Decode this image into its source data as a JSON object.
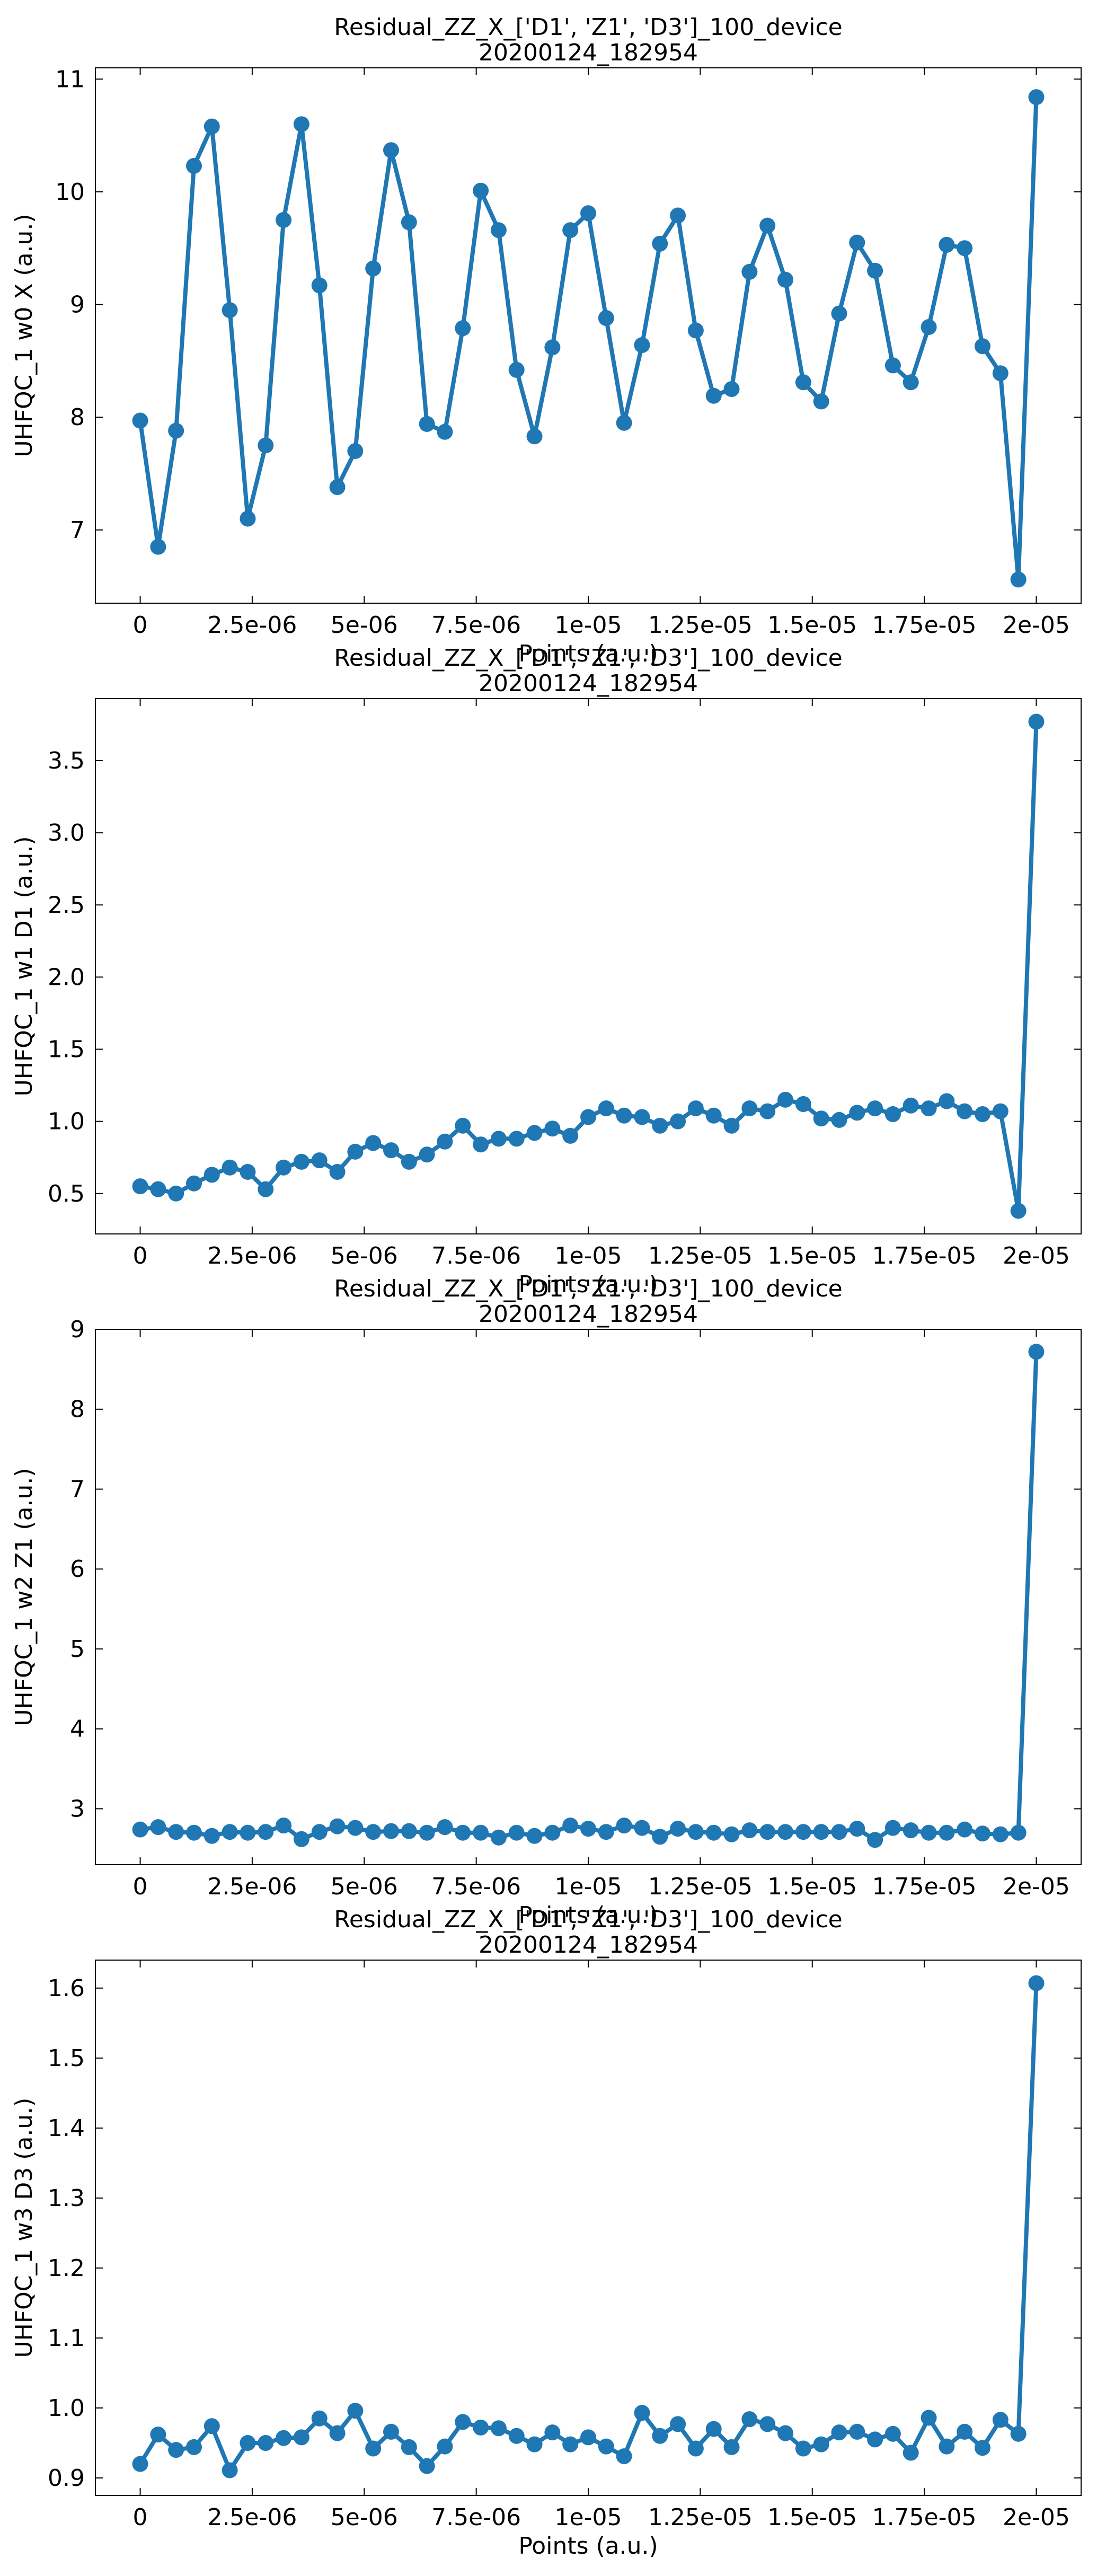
{
  "chart_data": [
    {
      "type": "line",
      "title": "Residual_ZZ_X_['D1', 'Z1', 'D3']_100_device",
      "subtitle": "20200124_182954",
      "xlabel": "Points (a.u.)",
      "ylabel": "UHFQC_1 w0 X (a.u.)",
      "xlim": [
        -1e-06,
        2.1e-05
      ],
      "ylim": [
        6.35,
        11.1
      ],
      "xticks": [
        0,
        2.5e-06,
        5e-06,
        7.5e-06,
        1e-05,
        1.25e-05,
        1.5e-05,
        1.75e-05,
        2e-05
      ],
      "xtick_labels": [
        "0",
        "2.5e-06",
        "5e-06",
        "7.5e-06",
        "1e-05",
        "1.25e-05",
        "1.5e-05",
        "1.75e-05",
        "2e-05"
      ],
      "yticks": [
        7,
        8,
        9,
        10,
        11
      ],
      "ytick_labels": [
        "7",
        "8",
        "9",
        "10",
        "11"
      ],
      "color": "#1f77b4",
      "x": [
        0,
        4e-07,
        8e-07,
        1.2e-06,
        1.6e-06,
        2e-06,
        2.4e-06,
        2.8e-06,
        3.2e-06,
        3.6e-06,
        4e-06,
        4.4e-06,
        4.8e-06,
        5.2e-06,
        5.6e-06,
        6e-06,
        6.4e-06,
        6.8e-06,
        7.2e-06,
        7.6e-06,
        8e-06,
        8.4e-06,
        8.8e-06,
        9.2e-06,
        9.6e-06,
        1e-05,
        1.04e-05,
        1.08e-05,
        1.12e-05,
        1.16e-05,
        1.2e-05,
        1.24e-05,
        1.28e-05,
        1.32e-05,
        1.36e-05,
        1.4e-05,
        1.44e-05,
        1.48e-05,
        1.52e-05,
        1.56e-05,
        1.6e-05,
        1.64e-05,
        1.68e-05,
        1.72e-05,
        1.76e-05,
        1.8e-05,
        1.84e-05,
        1.88e-05,
        1.92e-05,
        1.96e-05,
        2e-05
      ],
      "values": [
        7.97,
        6.85,
        7.88,
        10.23,
        10.58,
        8.95,
        7.1,
        7.75,
        9.75,
        10.6,
        9.17,
        7.38,
        7.7,
        9.32,
        10.37,
        9.73,
        7.94,
        7.87,
        8.79,
        10.01,
        9.66,
        8.42,
        7.83,
        8.62,
        9.66,
        9.81,
        8.88,
        7.95,
        8.64,
        9.54,
        9.79,
        8.77,
        8.19,
        8.25,
        9.29,
        9.7,
        9.22,
        8.31,
        8.14,
        8.92,
        9.55,
        9.3,
        8.46,
        8.31,
        8.8,
        9.53,
        9.5,
        8.63,
        8.39,
        6.56,
        10.84
      ]
    },
    {
      "type": "line",
      "title": "Residual_ZZ_X_['D1', 'Z1', 'D3']_100_device",
      "subtitle": "20200124_182954",
      "xlabel": "Points (a.u.)",
      "ylabel": "UHFQC_1 w1 D1 (a.u.)",
      "xlim": [
        -1e-06,
        2.1e-05
      ],
      "ylim": [
        0.22,
        3.93
      ],
      "xticks": [
        0,
        2.5e-06,
        5e-06,
        7.5e-06,
        1e-05,
        1.25e-05,
        1.5e-05,
        1.75e-05,
        2e-05
      ],
      "xtick_labels": [
        "0",
        "2.5e-06",
        "5e-06",
        "7.5e-06",
        "1e-05",
        "1.25e-05",
        "1.5e-05",
        "1.75e-05",
        "2e-05"
      ],
      "yticks": [
        0.5,
        1.0,
        1.5,
        2.0,
        2.5,
        3.0,
        3.5
      ],
      "ytick_labels": [
        "0.5",
        "1.0",
        "1.5",
        "2.0",
        "2.5",
        "3.0",
        "3.5"
      ],
      "color": "#1f77b4",
      "x": [
        0,
        4e-07,
        8e-07,
        1.2e-06,
        1.6e-06,
        2e-06,
        2.4e-06,
        2.8e-06,
        3.2e-06,
        3.6e-06,
        4e-06,
        4.4e-06,
        4.8e-06,
        5.2e-06,
        5.6e-06,
        6e-06,
        6.4e-06,
        6.8e-06,
        7.2e-06,
        7.6e-06,
        8e-06,
        8.4e-06,
        8.8e-06,
        9.2e-06,
        9.6e-06,
        1e-05,
        1.04e-05,
        1.08e-05,
        1.12e-05,
        1.16e-05,
        1.2e-05,
        1.24e-05,
        1.28e-05,
        1.32e-05,
        1.36e-05,
        1.4e-05,
        1.44e-05,
        1.48e-05,
        1.52e-05,
        1.56e-05,
        1.6e-05,
        1.64e-05,
        1.68e-05,
        1.72e-05,
        1.76e-05,
        1.8e-05,
        1.84e-05,
        1.88e-05,
        1.92e-05,
        1.96e-05,
        2e-05
      ],
      "values": [
        0.55,
        0.53,
        0.5,
        0.57,
        0.63,
        0.68,
        0.65,
        0.53,
        0.68,
        0.72,
        0.73,
        0.65,
        0.79,
        0.85,
        0.8,
        0.72,
        0.77,
        0.86,
        0.97,
        0.84,
        0.88,
        0.88,
        0.92,
        0.95,
        0.9,
        1.03,
        1.09,
        1.04,
        1.03,
        0.97,
        1.0,
        1.09,
        1.04,
        0.97,
        1.09,
        1.07,
        1.15,
        1.12,
        1.02,
        1.01,
        1.06,
        1.09,
        1.05,
        1.11,
        1.09,
        1.14,
        1.07,
        1.05,
        1.07,
        0.38,
        3.77
      ]
    },
    {
      "type": "line",
      "title": "Residual_ZZ_X_['D1', 'Z1', 'D3']_100_device",
      "subtitle": "20200124_182954",
      "xlabel": "Points (a.u.)",
      "ylabel": "UHFQC_1 w2 Z1 (a.u.)",
      "xlim": [
        -1e-06,
        2.1e-05
      ],
      "ylim": [
        2.3,
        9.0
      ],
      "xticks": [
        0,
        2.5e-06,
        5e-06,
        7.5e-06,
        1e-05,
        1.25e-05,
        1.5e-05,
        1.75e-05,
        2e-05
      ],
      "xtick_labels": [
        "0",
        "2.5e-06",
        "5e-06",
        "7.5e-06",
        "1e-05",
        "1.25e-05",
        "1.5e-05",
        "1.75e-05",
        "2e-05"
      ],
      "yticks": [
        3,
        4,
        5,
        6,
        7,
        8,
        9
      ],
      "ytick_labels": [
        "3",
        "4",
        "5",
        "6",
        "7",
        "8",
        "9"
      ],
      "color": "#1f77b4",
      "x": [
        0,
        4e-07,
        8e-07,
        1.2e-06,
        1.6e-06,
        2e-06,
        2.4e-06,
        2.8e-06,
        3.2e-06,
        3.6e-06,
        4e-06,
        4.4e-06,
        4.8e-06,
        5.2e-06,
        5.6e-06,
        6e-06,
        6.4e-06,
        6.8e-06,
        7.2e-06,
        7.6e-06,
        8e-06,
        8.4e-06,
        8.8e-06,
        9.2e-06,
        9.6e-06,
        1e-05,
        1.04e-05,
        1.08e-05,
        1.12e-05,
        1.16e-05,
        1.2e-05,
        1.24e-05,
        1.28e-05,
        1.32e-05,
        1.36e-05,
        1.4e-05,
        1.44e-05,
        1.48e-05,
        1.52e-05,
        1.56e-05,
        1.6e-05,
        1.64e-05,
        1.68e-05,
        1.72e-05,
        1.76e-05,
        1.8e-05,
        1.84e-05,
        1.88e-05,
        1.92e-05,
        1.96e-05,
        2e-05
      ],
      "values": [
        2.74,
        2.77,
        2.71,
        2.7,
        2.66,
        2.71,
        2.7,
        2.71,
        2.79,
        2.62,
        2.71,
        2.78,
        2.76,
        2.71,
        2.72,
        2.72,
        2.7,
        2.77,
        2.7,
        2.7,
        2.64,
        2.7,
        2.66,
        2.7,
        2.79,
        2.75,
        2.71,
        2.79,
        2.76,
        2.65,
        2.75,
        2.71,
        2.7,
        2.68,
        2.73,
        2.71,
        2.71,
        2.71,
        2.71,
        2.71,
        2.75,
        2.61,
        2.76,
        2.73,
        2.7,
        2.7,
        2.74,
        2.69,
        2.68,
        2.7,
        8.72
      ]
    },
    {
      "type": "line",
      "title": "Residual_ZZ_X_['D1', 'Z1', 'D3']_100_device",
      "subtitle": "20200124_182954",
      "xlabel": "Points (a.u.)",
      "ylabel": "UHFQC_1 w3 D3 (a.u.)",
      "xlim": [
        -1e-06,
        2.1e-05
      ],
      "ylim": [
        0.875,
        1.64
      ],
      "xticks": [
        0,
        2.5e-06,
        5e-06,
        7.5e-06,
        1e-05,
        1.25e-05,
        1.5e-05,
        1.75e-05,
        2e-05
      ],
      "xtick_labels": [
        "0",
        "2.5e-06",
        "5e-06",
        "7.5e-06",
        "1e-05",
        "1.25e-05",
        "1.5e-05",
        "1.75e-05",
        "2e-05"
      ],
      "yticks": [
        0.9,
        1.0,
        1.1,
        1.2,
        1.3,
        1.4,
        1.5,
        1.6
      ],
      "ytick_labels": [
        "0.9",
        "1.0",
        "1.1",
        "1.2",
        "1.3",
        "1.4",
        "1.5",
        "1.6"
      ],
      "color": "#1f77b4",
      "x": [
        0,
        4e-07,
        8e-07,
        1.2e-06,
        1.6e-06,
        2e-06,
        2.4e-06,
        2.8e-06,
        3.2e-06,
        3.6e-06,
        4e-06,
        4.4e-06,
        4.8e-06,
        5.2e-06,
        5.6e-06,
        6e-06,
        6.4e-06,
        6.8e-06,
        7.2e-06,
        7.6e-06,
        8e-06,
        8.4e-06,
        8.8e-06,
        9.2e-06,
        9.6e-06,
        1e-05,
        1.04e-05,
        1.08e-05,
        1.12e-05,
        1.16e-05,
        1.2e-05,
        1.24e-05,
        1.28e-05,
        1.32e-05,
        1.36e-05,
        1.4e-05,
        1.44e-05,
        1.48e-05,
        1.52e-05,
        1.56e-05,
        1.6e-05,
        1.64e-05,
        1.68e-05,
        1.72e-05,
        1.76e-05,
        1.8e-05,
        1.84e-05,
        1.88e-05,
        1.92e-05,
        1.96e-05,
        2e-05
      ],
      "values": [
        0.92,
        0.962,
        0.94,
        0.944,
        0.974,
        0.911,
        0.95,
        0.95,
        0.957,
        0.958,
        0.985,
        0.964,
        0.996,
        0.942,
        0.966,
        0.944,
        0.917,
        0.945,
        0.98,
        0.972,
        0.971,
        0.96,
        0.948,
        0.965,
        0.948,
        0.958,
        0.945,
        0.931,
        0.993,
        0.96,
        0.977,
        0.942,
        0.97,
        0.944,
        0.984,
        0.977,
        0.964,
        0.942,
        0.948,
        0.965,
        0.966,
        0.955,
        0.963,
        0.936,
        0.986,
        0.945,
        0.966,
        0.943,
        0.983,
        0.963,
        1.607
      ]
    }
  ]
}
